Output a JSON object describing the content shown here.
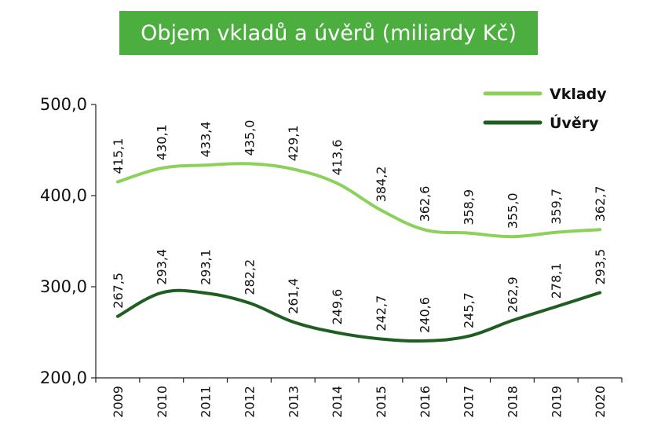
{
  "chart_data": {
    "type": "line",
    "title": "Objem vkladů a úvěrů (miliardy Kč)",
    "categories": [
      "2009",
      "2010",
      "2011",
      "2012",
      "2013",
      "2014",
      "2015",
      "2016",
      "2017",
      "2018",
      "2019",
      "2020"
    ],
    "series": [
      {
        "name": "Vklady",
        "color": "#8cd15a",
        "values": [
          415.1,
          430.1,
          433.4,
          435.0,
          429.1,
          413.6,
          384.2,
          362.6,
          358.9,
          355.0,
          359.7,
          362.7
        ],
        "labels": [
          "415,1",
          "430,1",
          "433,4",
          "435,0",
          "429,1",
          "413,6",
          "384,2",
          "362,6",
          "358,9",
          "355,0",
          "359,7",
          "362,7"
        ]
      },
      {
        "name": "Úvěry",
        "color": "#1f5e20",
        "values": [
          267.5,
          293.4,
          293.1,
          282.2,
          261.4,
          249.6,
          242.7,
          240.6,
          245.7,
          262.9,
          278.1,
          293.5
        ],
        "labels": [
          "267,5",
          "293,4",
          "293,1",
          "282,2",
          "261,4",
          "249,6",
          "242,7",
          "240,6",
          "245,7",
          "262,9",
          "278,1",
          "293,5"
        ]
      }
    ],
    "ylim": [
      200,
      500
    ],
    "yticks": [
      200,
      300,
      400,
      500
    ],
    "ytick_labels": [
      "200,0",
      "300,0",
      "400,0",
      "500,0"
    ],
    "xlabel": "",
    "ylabel": "",
    "grid": false,
    "legend": "top-right",
    "title_background": "#4cae3e"
  }
}
